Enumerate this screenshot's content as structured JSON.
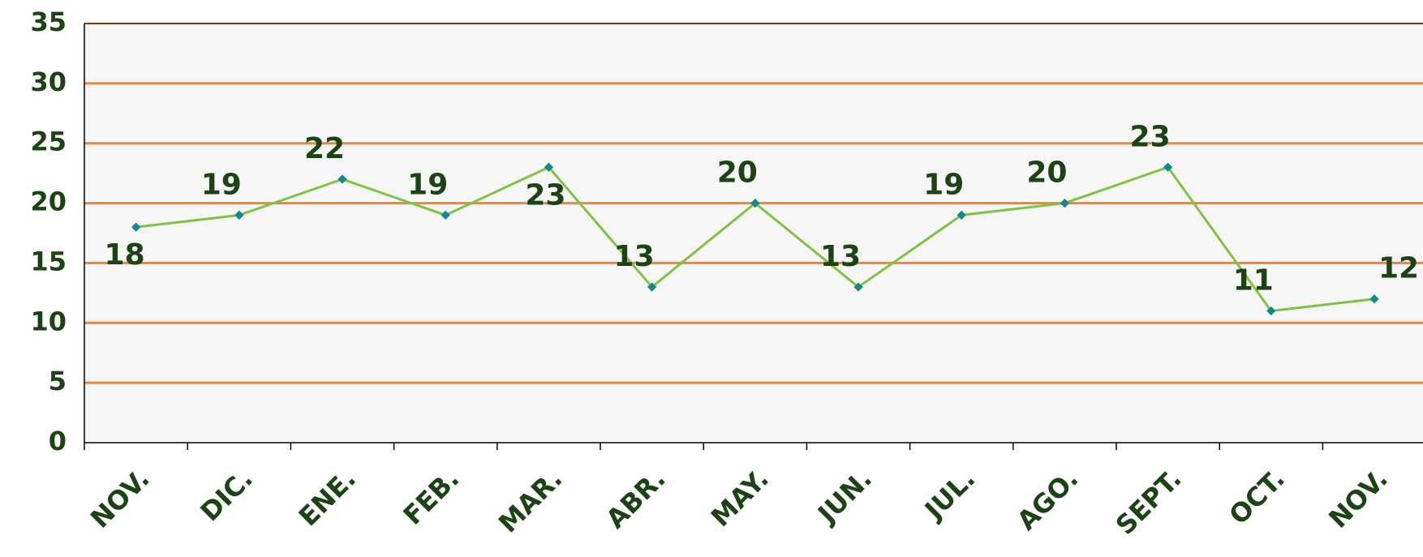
{
  "chart_data": {
    "type": "line",
    "categories": [
      "NOV.",
      "DIC.",
      "ENE.",
      "FEB.",
      "MAR.",
      "ABR.",
      "MAY.",
      "JUN.",
      "JUL.",
      "AGO.",
      "SEPT.",
      "OCT.",
      "NOV."
    ],
    "values": [
      18,
      19,
      22,
      19,
      23,
      13,
      20,
      13,
      19,
      20,
      23,
      11,
      12
    ],
    "color": "#80c342",
    "marker_color": "#138a8a",
    "grid_color": "#e8873a",
    "ylim": [
      0,
      35
    ],
    "yticks": [
      0,
      5,
      10,
      15,
      20,
      25,
      30,
      35
    ],
    "grid": true
  }
}
